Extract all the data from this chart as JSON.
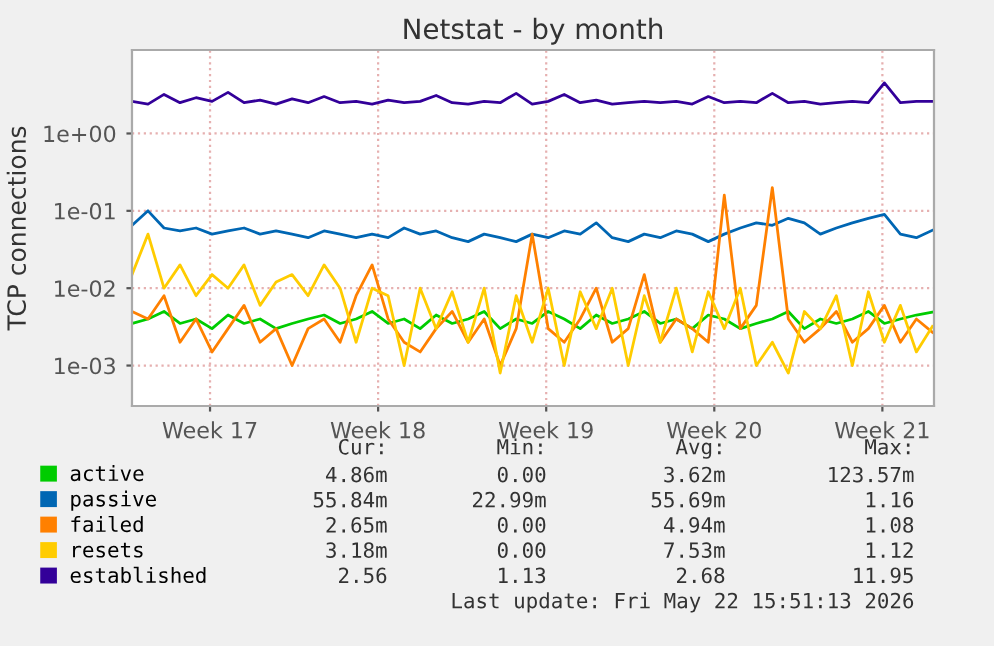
{
  "chart_data": {
    "type": "line",
    "title": "Netstat - by month",
    "ylabel": "TCP connections",
    "log": "y",
    "grid": true,
    "legend": "bottom",
    "ylim": [
      0.0003,
      12
    ],
    "yticks": [
      {
        "value": 0.001,
        "label": "1e-03"
      },
      {
        "value": 0.01,
        "label": "1e-02"
      },
      {
        "value": 0.1,
        "label": "1e-01"
      },
      {
        "value": 1,
        "label": "1e+00"
      }
    ],
    "xlim": [
      "2026-04-19T06:00",
      "2026-05-22T15:36"
    ],
    "xticks": [
      {
        "value": "2026-04-22T12:00",
        "label": "Week 17"
      },
      {
        "value": "2026-04-29T12:00",
        "label": "Week 18"
      },
      {
        "value": "2026-05-06T12:00",
        "label": "Week 19"
      },
      {
        "value": "2026-05-13T12:00",
        "label": "Week 20"
      },
      {
        "value": "2026-05-20T12:00",
        "label": "Week 21"
      }
    ],
    "x": [
      "2026-04-19T06:00",
      "2026-04-19T22:00",
      "2026-04-20T14:00",
      "2026-04-21T06:00",
      "2026-04-21T22:00",
      "2026-04-22T14:00",
      "2026-04-23T06:00",
      "2026-04-23T22:00",
      "2026-04-24T14:00",
      "2026-04-25T06:00",
      "2026-04-25T22:00",
      "2026-04-26T14:00",
      "2026-04-27T06:00",
      "2026-04-27T22:00",
      "2026-04-28T14:00",
      "2026-04-29T06:00",
      "2026-04-29T22:00",
      "2026-04-30T14:00",
      "2026-05-01T06:00",
      "2026-05-01T22:00",
      "2026-05-02T14:00",
      "2026-05-03T06:00",
      "2026-05-03T22:00",
      "2026-05-04T14:00",
      "2026-05-05T06:00",
      "2026-05-05T22:00",
      "2026-05-06T14:00",
      "2026-05-07T06:00",
      "2026-05-07T22:00",
      "2026-05-08T14:00",
      "2026-05-09T06:00",
      "2026-05-09T22:00",
      "2026-05-10T14:00",
      "2026-05-11T06:00",
      "2026-05-11T22:00",
      "2026-05-12T14:00",
      "2026-05-13T06:00",
      "2026-05-13T22:00",
      "2026-05-14T14:00",
      "2026-05-15T06:00",
      "2026-05-15T22:00",
      "2026-05-16T14:00",
      "2026-05-17T06:00",
      "2026-05-17T22:00",
      "2026-05-18T14:00",
      "2026-05-19T06:00",
      "2026-05-19T22:00",
      "2026-05-20T14:00",
      "2026-05-21T06:00",
      "2026-05-21T22:00",
      "2026-05-22T14:00"
    ],
    "series": [
      {
        "name": "active",
        "color": "#00cc00",
        "values": [
          0.0035,
          0.004,
          0.005,
          0.0035,
          0.004,
          0.003,
          0.0045,
          0.0035,
          0.004,
          0.003,
          0.0035,
          0.004,
          0.0045,
          0.0035,
          0.004,
          0.005,
          0.0035,
          0.004,
          0.003,
          0.0045,
          0.0035,
          0.004,
          0.005,
          0.003,
          0.004,
          0.0035,
          0.005,
          0.004,
          0.003,
          0.0045,
          0.0035,
          0.004,
          0.005,
          0.0035,
          0.004,
          0.003,
          0.0045,
          0.004,
          0.003,
          0.0035,
          0.004,
          0.005,
          0.003,
          0.004,
          0.0035,
          0.004,
          0.005,
          0.0035,
          0.004,
          0.0045,
          0.0049
        ]
      },
      {
        "name": "passive",
        "color": "#0066b3",
        "values": [
          0.065,
          0.1,
          0.06,
          0.055,
          0.06,
          0.05,
          0.055,
          0.06,
          0.05,
          0.055,
          0.05,
          0.045,
          0.055,
          0.05,
          0.045,
          0.05,
          0.045,
          0.06,
          0.05,
          0.055,
          0.045,
          0.04,
          0.05,
          0.045,
          0.04,
          0.05,
          0.045,
          0.055,
          0.05,
          0.07,
          0.045,
          0.04,
          0.05,
          0.045,
          0.055,
          0.05,
          0.04,
          0.05,
          0.06,
          0.07,
          0.065,
          0.08,
          0.07,
          0.05,
          0.06,
          0.07,
          0.08,
          0.09,
          0.05,
          0.045,
          0.056
        ]
      },
      {
        "name": "failed",
        "color": "#ff8000",
        "values": [
          0.005,
          0.004,
          0.008,
          0.002,
          0.004,
          0.0015,
          0.003,
          0.006,
          0.002,
          0.003,
          0.001,
          0.003,
          0.004,
          0.002,
          0.008,
          0.02,
          0.004,
          0.002,
          0.0015,
          0.003,
          0.005,
          0.002,
          0.004,
          0.001,
          0.003,
          0.05,
          0.003,
          0.002,
          0.004,
          0.01,
          0.002,
          0.003,
          0.015,
          0.002,
          0.004,
          0.003,
          0.002,
          0.16,
          0.003,
          0.006,
          0.2,
          0.004,
          0.002,
          0.003,
          0.005,
          0.002,
          0.003,
          0.006,
          0.002,
          0.004,
          0.0027
        ]
      },
      {
        "name": "resets",
        "color": "#ffcc00",
        "values": [
          0.015,
          0.05,
          0.01,
          0.02,
          0.008,
          0.015,
          0.01,
          0.02,
          0.006,
          0.012,
          0.015,
          0.008,
          0.02,
          0.01,
          0.002,
          0.01,
          0.008,
          0.001,
          0.01,
          0.003,
          0.009,
          0.002,
          0.01,
          0.0008,
          0.008,
          0.002,
          0.01,
          0.001,
          0.009,
          0.003,
          0.01,
          0.001,
          0.008,
          0.002,
          0.01,
          0.0015,
          0.009,
          0.003,
          0.01,
          0.001,
          0.002,
          0.0008,
          0.005,
          0.003,
          0.008,
          0.001,
          0.009,
          0.002,
          0.006,
          0.0015,
          0.0032
        ]
      },
      {
        "name": "established",
        "color": "#330099",
        "values": [
          2.6,
          2.4,
          3.2,
          2.5,
          2.9,
          2.6,
          3.4,
          2.5,
          2.7,
          2.4,
          2.8,
          2.5,
          3.0,
          2.5,
          2.6,
          2.4,
          2.7,
          2.5,
          2.6,
          3.1,
          2.5,
          2.4,
          2.6,
          2.5,
          3.3,
          2.4,
          2.6,
          3.2,
          2.5,
          2.7,
          2.4,
          2.5,
          2.6,
          2.5,
          2.6,
          2.4,
          3.0,
          2.5,
          2.6,
          2.5,
          3.3,
          2.5,
          2.6,
          2.4,
          2.5,
          2.6,
          2.5,
          4.5,
          2.5,
          2.6,
          2.6
        ]
      }
    ],
    "annotations": [
      "Cur:",
      "Min:",
      "Avg:",
      "Max:",
      "4.86m",
      "0.00",
      "3.62m",
      "123.57m",
      "55.84m",
      "22.99m",
      "55.69m",
      "1.16",
      "2.65m",
      "0.00",
      "4.94m",
      "1.08",
      "3.18m",
      "0.00",
      "7.53m",
      "1.12",
      "2.56",
      "1.13",
      "2.68",
      "11.95",
      "Last update: Fri May 22 15:51:13 2026"
    ]
  }
}
